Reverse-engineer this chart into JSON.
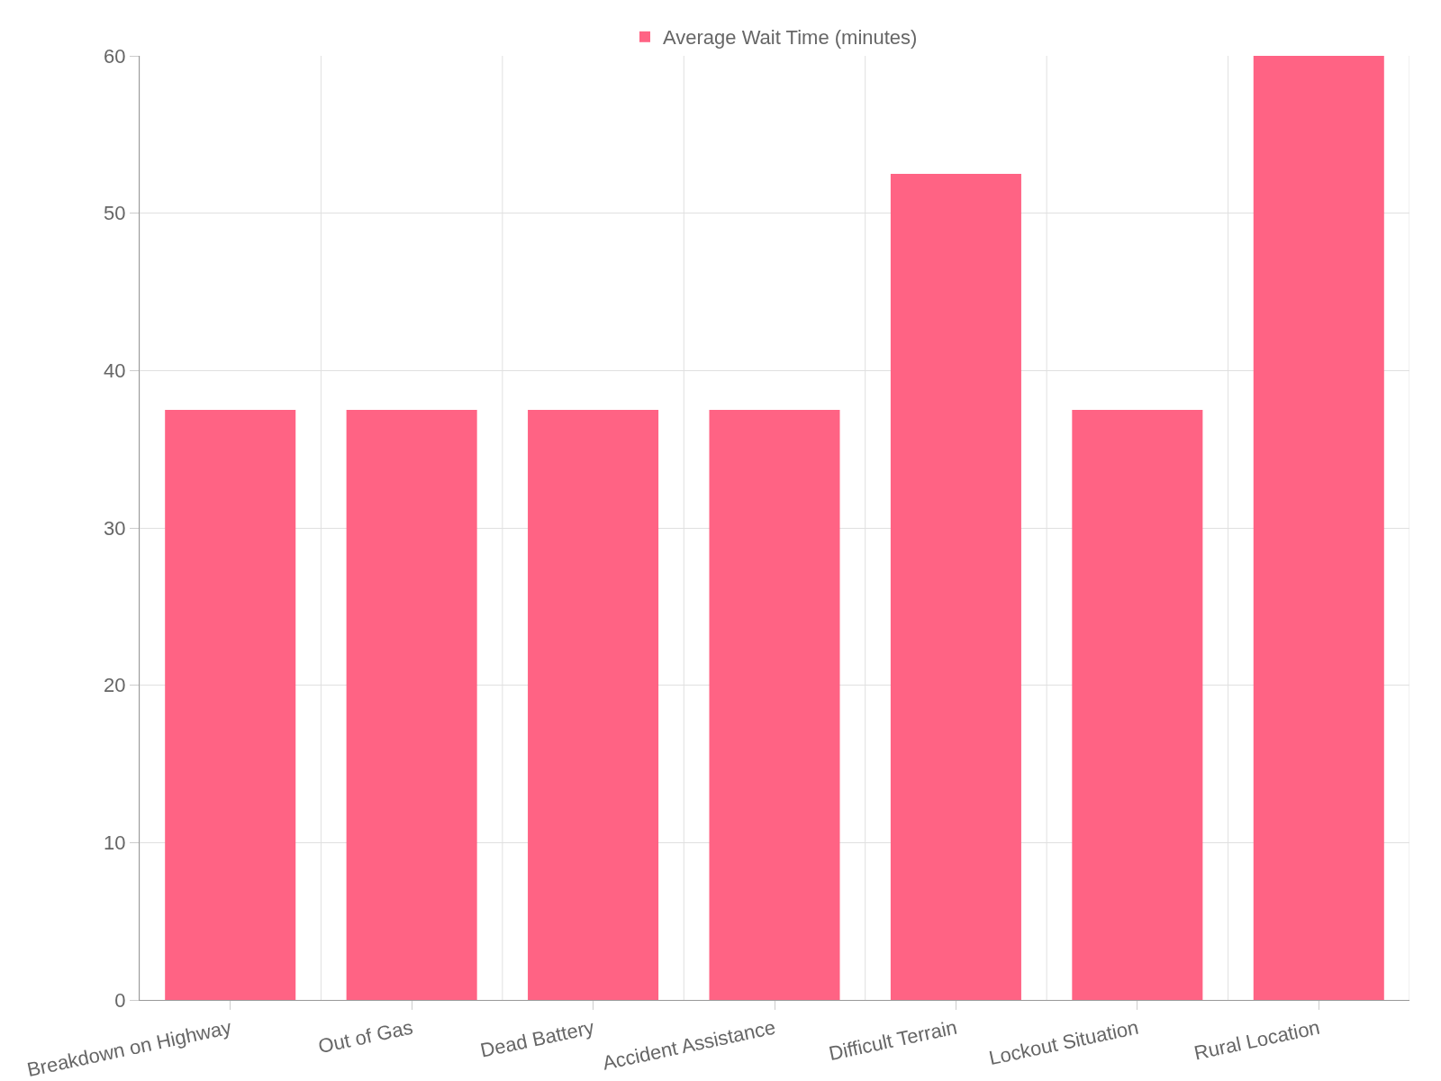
{
  "chart_data": {
    "type": "bar",
    "categories": [
      "Breakdown on Highway",
      "Out of Gas",
      "Dead Battery",
      "Accident Assistance",
      "Difficult Terrain",
      "Lockout Situation",
      "Rural Location"
    ],
    "series": [
      {
        "name": "Average Wait Time (minutes)",
        "color": "#ff6384",
        "values": [
          37.5,
          37.5,
          37.5,
          37.5,
          52.5,
          37.5,
          60
        ]
      }
    ],
    "ylim": [
      0,
      60
    ],
    "yticks": [
      0,
      10,
      20,
      30,
      40,
      50,
      60
    ],
    "grid": true,
    "legend": "top"
  }
}
